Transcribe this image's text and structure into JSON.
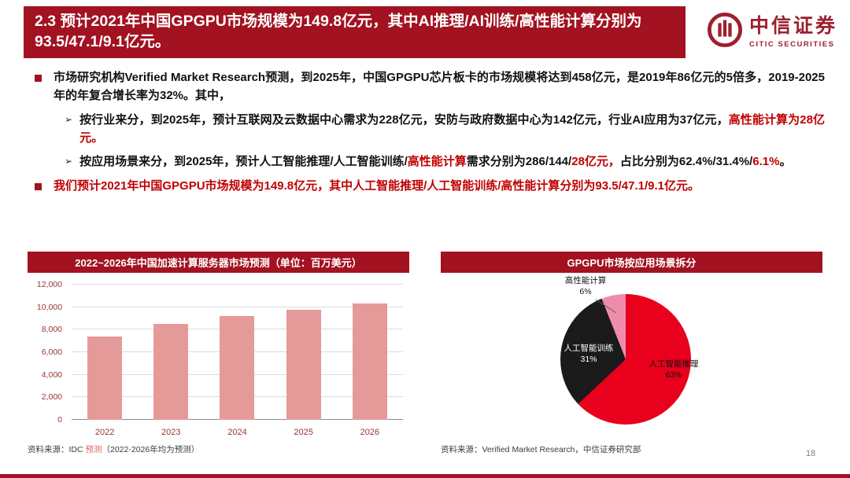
{
  "page_number": "18",
  "brand_colors": {
    "banner_red": "#a21220",
    "highlight_red": "#c00000",
    "logo_red": "#9e1f2d"
  },
  "header": {
    "title": "2.3 预计2021年中国GPGPU市场规模为149.8亿元，其中AI推理/AI训练/高性能计算分别为93.5/47.1/9.1亿元。",
    "logo": {
      "cn": "中信证券",
      "en": "CITIC SECURITIES"
    }
  },
  "bullets": {
    "b1": "市场研究机构Verified Market Research预测，到2025年，中国GPGPU芯片板卡的市场规模将达到458亿元，是2019年86亿元的5倍多，2019-2025年的年复合增长率为32%。其中，",
    "sub1": {
      "black": "按行业来分，到2025年，预计互联网及云数据中心需求为228亿元，安防与政府数据中心为142亿元，行业AI应用为37亿元，",
      "red": "高性能计算为28亿元。"
    },
    "sub2": {
      "seg1": "按应用场景来分，到2025年，预计人工智能推理/人工智能训练/",
      "red1": "高性能计算",
      "seg2": "需求分别为286/144/",
      "red2": "28亿元，",
      "seg3": "占比分别为62.4%/31.4%/",
      "red3": "6.1%",
      "seg4": "。"
    },
    "b2": "我们预计2021年中国GPGPU市场规模为149.8亿元，其中人工智能推理/人工智能训练/高性能计算分别为93.5/47.1/9.1亿元。"
  },
  "chart_data": [
    {
      "type": "bar",
      "title": "2022~2026年中国加速计算服务器市场预测（单位：百万美元）",
      "categories": [
        "2022",
        "2023",
        "2024",
        "2025",
        "2026"
      ],
      "values": [
        7400,
        8500,
        9200,
        9800,
        10340
      ],
      "xlabel": "",
      "ylabel": "",
      "ylim": [
        0,
        12000
      ],
      "ytick_step": 2000,
      "grid": true,
      "bar_color": "#e59a9a",
      "source": {
        "prefix": "资料来源：IDC ",
        "link": "预测",
        "suffix": "（2022-2026年均为预测）"
      }
    },
    {
      "type": "pie",
      "title": "GPGPU市场按应用场景拆分",
      "slices": [
        {
          "label": "人工智能推理",
          "pct": 63,
          "pct_label": "63%",
          "color": "#e8001c"
        },
        {
          "label": "人工智能训练",
          "pct": 31,
          "pct_label": "31%",
          "color": "#1a1a1a"
        },
        {
          "label": "高性能计算",
          "pct": 6,
          "pct_label": "6%",
          "color": "#f08cab"
        }
      ],
      "legend_position": "labels-on-slices",
      "source": "资料来源：Verified Market Research，中信证券研究部"
    }
  ]
}
